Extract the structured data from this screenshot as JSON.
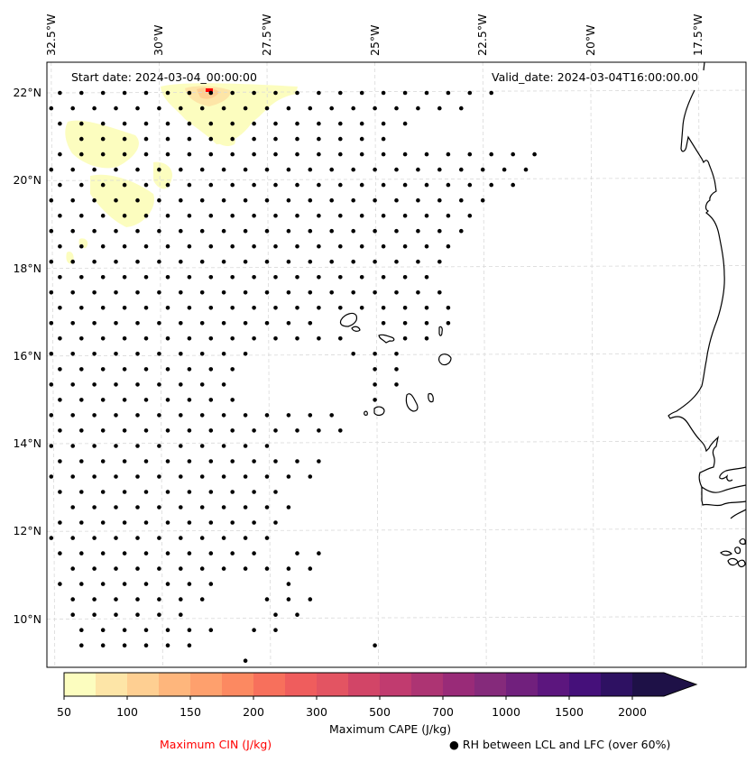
{
  "map": {
    "start_date_label": "Start date: 2024-03-04_00:00:00",
    "valid_date_label": "Valid_date: 2024-03-04T16:00:00.00",
    "lon_ticks": [
      {
        "label": "32.5°W",
        "lon": -32.5
      },
      {
        "label": "30°W",
        "lon": -30
      },
      {
        "label": "27.5°W",
        "lon": -27.5
      },
      {
        "label": "25°W",
        "lon": -25
      },
      {
        "label": "22.5°W",
        "lon": -22.5
      },
      {
        "label": "20°W",
        "lon": -20
      },
      {
        "label": "17.5°W",
        "lon": -17.5
      }
    ],
    "lat_ticks": [
      {
        "label": "22°N",
        "lat": 22
      },
      {
        "label": "20°N",
        "lat": 20
      },
      {
        "label": "18°N",
        "lat": 18
      },
      {
        "label": "16°N",
        "lat": 16
      },
      {
        "label": "14°N",
        "lat": 14
      },
      {
        "label": "12°N",
        "lat": 12
      },
      {
        "label": "10°N",
        "lat": 10
      }
    ],
    "extent": {
      "lon_min": -32.6,
      "lon_max": -16.4,
      "lat_min": 8.9,
      "lat_max": 22.7
    },
    "rh_dot_rows": [
      {
        "lat": 22.0,
        "spans": [
          [
            -32.3,
            -22.0
          ]
        ]
      },
      {
        "lat": 21.65,
        "spans": [
          [
            -32.5,
            -22.6
          ]
        ]
      },
      {
        "lat": 21.3,
        "spans": [
          [
            -32.3,
            -24.3
          ]
        ]
      },
      {
        "lat": 20.95,
        "spans": [
          [
            -31.8,
            -24.8
          ]
        ]
      },
      {
        "lat": 20.6,
        "spans": [
          [
            -32.3,
            -21.0
          ]
        ]
      },
      {
        "lat": 20.25,
        "spans": [
          [
            -32.5,
            -21.3
          ]
        ]
      },
      {
        "lat": 19.9,
        "spans": [
          [
            -32.3,
            -21.7
          ]
        ]
      },
      {
        "lat": 19.55,
        "spans": [
          [
            -32.5,
            -22.3
          ]
        ]
      },
      {
        "lat": 19.2,
        "spans": [
          [
            -32.3,
            -22.6
          ]
        ]
      },
      {
        "lat": 18.85,
        "spans": [
          [
            -32.5,
            -23.0
          ]
        ]
      },
      {
        "lat": 18.5,
        "spans": [
          [
            -32.3,
            -23.3
          ]
        ]
      },
      {
        "lat": 18.15,
        "spans": [
          [
            -32.5,
            -23.3
          ]
        ]
      },
      {
        "lat": 17.8,
        "spans": [
          [
            -32.3,
            -23.5
          ]
        ]
      },
      {
        "lat": 17.45,
        "spans": [
          [
            -32.5,
            -23.5
          ]
        ]
      },
      {
        "lat": 17.1,
        "spans": [
          [
            -32.3,
            -23.3
          ]
        ]
      },
      {
        "lat": 16.75,
        "spans": [
          [
            -32.5,
            -26.3
          ],
          [
            -24.8,
            -23.3
          ]
        ]
      },
      {
        "lat": 16.4,
        "spans": [
          [
            -32.3,
            -25.8
          ],
          [
            -24.3,
            -23.6
          ]
        ]
      },
      {
        "lat": 16.05,
        "spans": [
          [
            -32.5,
            -27.8
          ],
          [
            -25.5,
            -24.3
          ]
        ]
      },
      {
        "lat": 15.7,
        "spans": [
          [
            -32.3,
            -28.3
          ],
          [
            -25.0,
            -24.3
          ]
        ]
      },
      {
        "lat": 15.35,
        "spans": [
          [
            -32.5,
            -28.3
          ],
          [
            -25.0,
            -24.3
          ]
        ]
      },
      {
        "lat": 15.0,
        "spans": [
          [
            -32.3,
            -28.0
          ],
          [
            -25.0,
            -25.0
          ]
        ]
      },
      {
        "lat": 14.65,
        "spans": [
          [
            -32.5,
            -26.0
          ]
        ]
      },
      {
        "lat": 14.3,
        "spans": [
          [
            -32.3,
            -25.8
          ]
        ]
      },
      {
        "lat": 13.95,
        "spans": [
          [
            -32.5,
            -27.3
          ]
        ]
      },
      {
        "lat": 13.6,
        "spans": [
          [
            -32.3,
            -26.0
          ]
        ]
      },
      {
        "lat": 13.25,
        "spans": [
          [
            -32.5,
            -26.3
          ]
        ]
      },
      {
        "lat": 12.9,
        "spans": [
          [
            -32.3,
            -27.0
          ]
        ]
      },
      {
        "lat": 12.55,
        "spans": [
          [
            -32.0,
            -27.0
          ]
        ]
      },
      {
        "lat": 12.2,
        "spans": [
          [
            -32.3,
            -27.3
          ]
        ]
      },
      {
        "lat": 11.85,
        "spans": [
          [
            -32.5,
            -27.5
          ]
        ]
      },
      {
        "lat": 11.5,
        "spans": [
          [
            -32.3,
            -27.8
          ],
          [
            -26.8,
            -26.3
          ]
        ]
      },
      {
        "lat": 11.15,
        "spans": [
          [
            -32.0,
            -27.5
          ],
          [
            -27.0,
            -26.5
          ]
        ]
      },
      {
        "lat": 10.8,
        "spans": [
          [
            -32.3,
            -28.5
          ],
          [
            -27.0,
            -26.8
          ]
        ]
      },
      {
        "lat": 10.45,
        "spans": [
          [
            -32.0,
            -29.0
          ],
          [
            -27.5,
            -26.5
          ]
        ]
      },
      {
        "lat": 10.1,
        "spans": [
          [
            -32.0,
            -29.5
          ],
          [
            -27.3,
            -26.5
          ]
        ]
      },
      {
        "lat": 9.75,
        "spans": [
          [
            -31.8,
            -28.5
          ],
          [
            -27.8,
            -27.3
          ]
        ]
      },
      {
        "lat": 9.4,
        "spans": [
          [
            -31.8,
            -29.0
          ],
          [
            -25.0,
            -24.8
          ]
        ]
      },
      {
        "lat": 9.05,
        "spans": [
          [
            -28.0,
            -27.8
          ]
        ]
      }
    ]
  },
  "colorbar": {
    "levels": [
      "50",
      "75",
      "100",
      "125",
      "150",
      "175",
      "200",
      "250",
      "300",
      "400",
      "500",
      "600",
      "700",
      "800",
      "1000",
      "1250",
      "1500",
      "1750",
      "2000"
    ],
    "tick_labels": [
      "50",
      "100",
      "150",
      "200",
      "300",
      "500",
      "700",
      "1000",
      "1500",
      "2000"
    ],
    "tick_level_index": [
      0,
      2,
      4,
      6,
      8,
      10,
      12,
      14,
      16,
      18
    ],
    "colors": [
      "#fcfdbf",
      "#fde5a7",
      "#fecf92",
      "#feb67c",
      "#fea06d",
      "#fc8961",
      "#f7705c",
      "#ef5d5d",
      "#e35462",
      "#d24567",
      "#c13b6f",
      "#ad3473",
      "#992b78",
      "#852a7b",
      "#71207d",
      "#5c167e",
      "#45107a",
      "#2e1162",
      "#1e1147"
    ],
    "extend_color": "#1e1147",
    "cape_label": "Maximum CAPE (J/kg)",
    "cin_label": "Maximum CIN (J/kg)",
    "cin_color": "#ff0000",
    "rh_label": "● RH between LCL and LFC (over 60%)"
  }
}
